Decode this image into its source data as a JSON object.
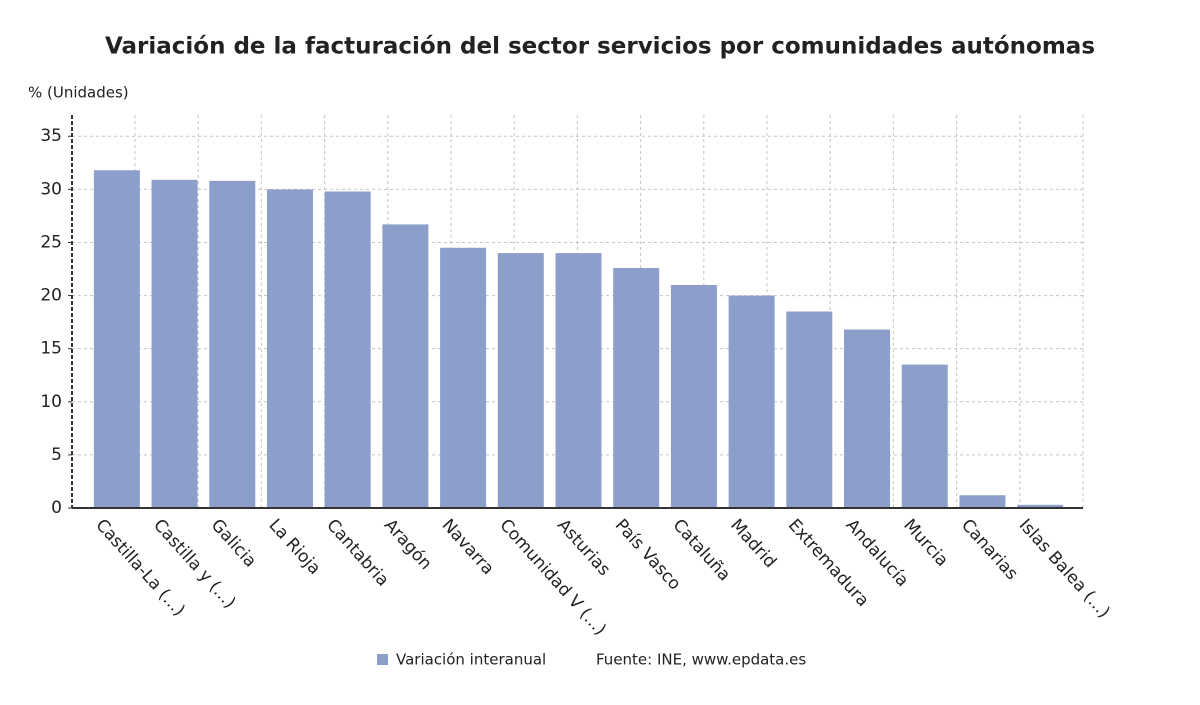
{
  "chart_data": {
    "type": "bar",
    "title": "Variación de la facturación del sector servicios por comunidades autónomas",
    "y_label": "% (Unidades)",
    "categories": [
      "Castilla-La (...)",
      "Castilla y (...)",
      "Galicia",
      "La Rioja",
      "Cantabria",
      "Aragón",
      "Navarra",
      "Comunidad V (...)",
      "Asturias",
      "País Vasco",
      "Cataluña",
      "Madrid",
      "Extremadura",
      "Andalucía",
      "Murcia",
      "Canarias",
      "Islas Balea (...)"
    ],
    "series": [
      {
        "name": "Variación interanual",
        "color": "#8c9fcb",
        "values": [
          31.8,
          30.9,
          30.8,
          30.0,
          29.8,
          26.7,
          24.5,
          24.0,
          24.0,
          22.6,
          21.0,
          20.0,
          18.5,
          16.8,
          13.5,
          1.2,
          0.3
        ]
      }
    ],
    "ylim": [
      0,
      37
    ],
    "yticks": [
      0,
      5,
      10,
      15,
      20,
      25,
      30,
      35
    ],
    "grid": true,
    "source": "Fuente: INE, www.epdata.es"
  }
}
